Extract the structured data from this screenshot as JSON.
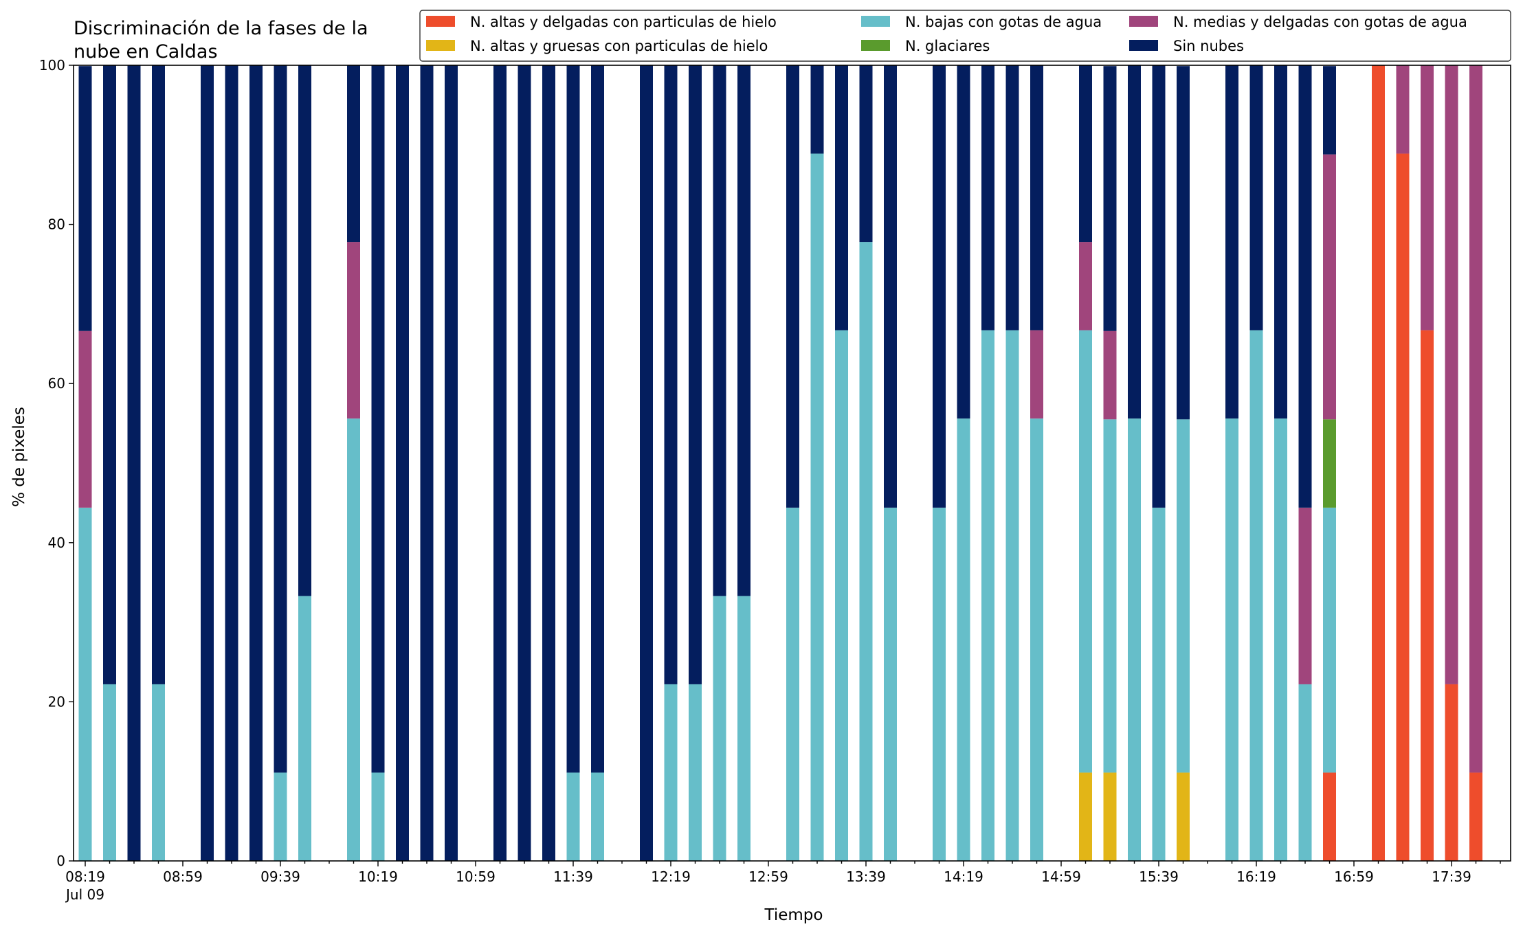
{
  "chart_data": {
    "type": "bar",
    "stacked": true,
    "title": [
      "Discriminación de la fases de la",
      "nube en Caldas"
    ],
    "xlabel": "Tiempo",
    "ylabel": "% de pixeles",
    "ylim": [
      0,
      100
    ],
    "yticks": [
      0,
      20,
      40,
      60,
      80,
      100
    ],
    "xticklabels": [
      "08:19",
      "08:59",
      "09:39",
      "10:19",
      "10:59",
      "11:39",
      "12:19",
      "12:59",
      "13:39",
      "14:19",
      "14:59",
      "15:39",
      "16:19",
      "16:59",
      "17:39"
    ],
    "x_date_label": "Jul 09",
    "grid": false,
    "legend_position": "top-right",
    "x": [
      "08:19",
      "08:29",
      "08:39",
      "08:49",
      "08:59",
      "09:09",
      "09:19",
      "09:29",
      "09:39",
      "09:49",
      "09:59",
      "10:09",
      "10:19",
      "10:29",
      "10:39",
      "10:49",
      "10:59",
      "11:09",
      "11:19",
      "11:29",
      "11:39",
      "11:49",
      "11:59",
      "12:09",
      "12:19",
      "12:29",
      "12:39",
      "12:49",
      "12:59",
      "13:09",
      "13:19",
      "13:29",
      "13:39",
      "13:49",
      "13:59",
      "14:09",
      "14:19",
      "14:29",
      "14:39",
      "14:49",
      "14:59",
      "15:09",
      "15:19",
      "15:29",
      "15:39",
      "15:49",
      "15:59",
      "16:09",
      "16:19",
      "16:29",
      "16:39",
      "16:49",
      "16:59",
      "17:09",
      "17:19",
      "17:29",
      "17:39",
      "17:49"
    ],
    "series": [
      {
        "name": "N. altas y delgadas con particulas de hielo",
        "color": "#ee4d2c",
        "values": [
          0,
          0,
          0,
          0,
          null,
          0,
          0,
          0,
          0,
          0,
          null,
          0,
          0,
          0,
          0,
          0,
          null,
          0,
          0,
          0,
          0,
          0,
          null,
          0,
          0,
          0,
          0,
          0,
          null,
          0,
          0,
          0,
          0,
          0,
          null,
          0,
          0,
          0,
          0,
          0,
          null,
          0,
          0,
          0,
          0,
          0,
          null,
          0,
          0,
          0,
          0,
          11.1,
          null,
          100,
          88.9,
          66.7,
          22.2,
          11.1
        ]
      },
      {
        "name": "N. altas y gruesas con particulas de hielo",
        "color": "#e2b517",
        "values": [
          0,
          0,
          0,
          0,
          null,
          0,
          0,
          0,
          0,
          0,
          null,
          0,
          0,
          0,
          0,
          0,
          null,
          0,
          0,
          0,
          0,
          0,
          null,
          0,
          0,
          0,
          0,
          0,
          null,
          0,
          0,
          0,
          0,
          0,
          null,
          0,
          0,
          0,
          0,
          0,
          null,
          11.1,
          11.1,
          0,
          0,
          11.1,
          null,
          0,
          0,
          0,
          0,
          0,
          null,
          0,
          0,
          0,
          0,
          0
        ]
      },
      {
        "name": "N. bajas con gotas de agua",
        "color": "#66bec9",
        "values": [
          44.4,
          22.2,
          0,
          22.2,
          null,
          0,
          0,
          0,
          11.1,
          33.3,
          null,
          55.6,
          11.1,
          0,
          0,
          0,
          null,
          0,
          0,
          0,
          11.1,
          11.1,
          null,
          0,
          22.2,
          22.2,
          33.3,
          33.3,
          null,
          44.4,
          88.9,
          66.7,
          77.8,
          44.4,
          null,
          44.4,
          55.6,
          66.7,
          66.7,
          55.6,
          null,
          55.6,
          44.4,
          55.6,
          44.4,
          44.4,
          null,
          55.6,
          66.7,
          55.6,
          22.2,
          33.3,
          null,
          0,
          0,
          0,
          0,
          0
        ]
      },
      {
        "name": "N. glaciares",
        "color": "#5a9b2d",
        "values": [
          0,
          0,
          0,
          0,
          null,
          0,
          0,
          0,
          0,
          0,
          null,
          0,
          0,
          0,
          0,
          0,
          null,
          0,
          0,
          0,
          0,
          0,
          null,
          0,
          0,
          0,
          0,
          0,
          null,
          0,
          0,
          0,
          0,
          0,
          null,
          0,
          0,
          0,
          0,
          0,
          null,
          0,
          0,
          0,
          0,
          0,
          null,
          0,
          0,
          0,
          0,
          11.1,
          null,
          0,
          0,
          0,
          0,
          0
        ]
      },
      {
        "name": "N. medias y delgadas con gotas de agua",
        "color": "#a0457c",
        "values": [
          22.2,
          0,
          0,
          0,
          null,
          0,
          0,
          0,
          0,
          0,
          null,
          22.2,
          0,
          0,
          0,
          0,
          null,
          0,
          0,
          0,
          0,
          0,
          null,
          0,
          0,
          0,
          0,
          0,
          null,
          0,
          0,
          0,
          0,
          0,
          null,
          0,
          0,
          0,
          0,
          11.1,
          null,
          11.1,
          11.1,
          0,
          0,
          0,
          null,
          0,
          0,
          0,
          22.2,
          33.3,
          null,
          0,
          11.1,
          33.3,
          77.8,
          88.9
        ]
      },
      {
        "name": "Sin nubes",
        "color": "#041e5e",
        "values": [
          33.3,
          77.8,
          100,
          77.8,
          null,
          100,
          100,
          100,
          88.9,
          66.7,
          null,
          22.2,
          88.9,
          100,
          100,
          100,
          null,
          100,
          100,
          100,
          88.9,
          88.9,
          null,
          100,
          77.8,
          77.8,
          66.7,
          66.7,
          null,
          55.6,
          11.1,
          33.3,
          22.2,
          55.6,
          null,
          55.6,
          44.4,
          33.3,
          33.3,
          33.3,
          null,
          22.2,
          33.3,
          44.4,
          55.6,
          44.4,
          null,
          44.4,
          33.3,
          44.4,
          55.6,
          11.1,
          null,
          0,
          0,
          0,
          0,
          0
        ]
      }
    ]
  }
}
